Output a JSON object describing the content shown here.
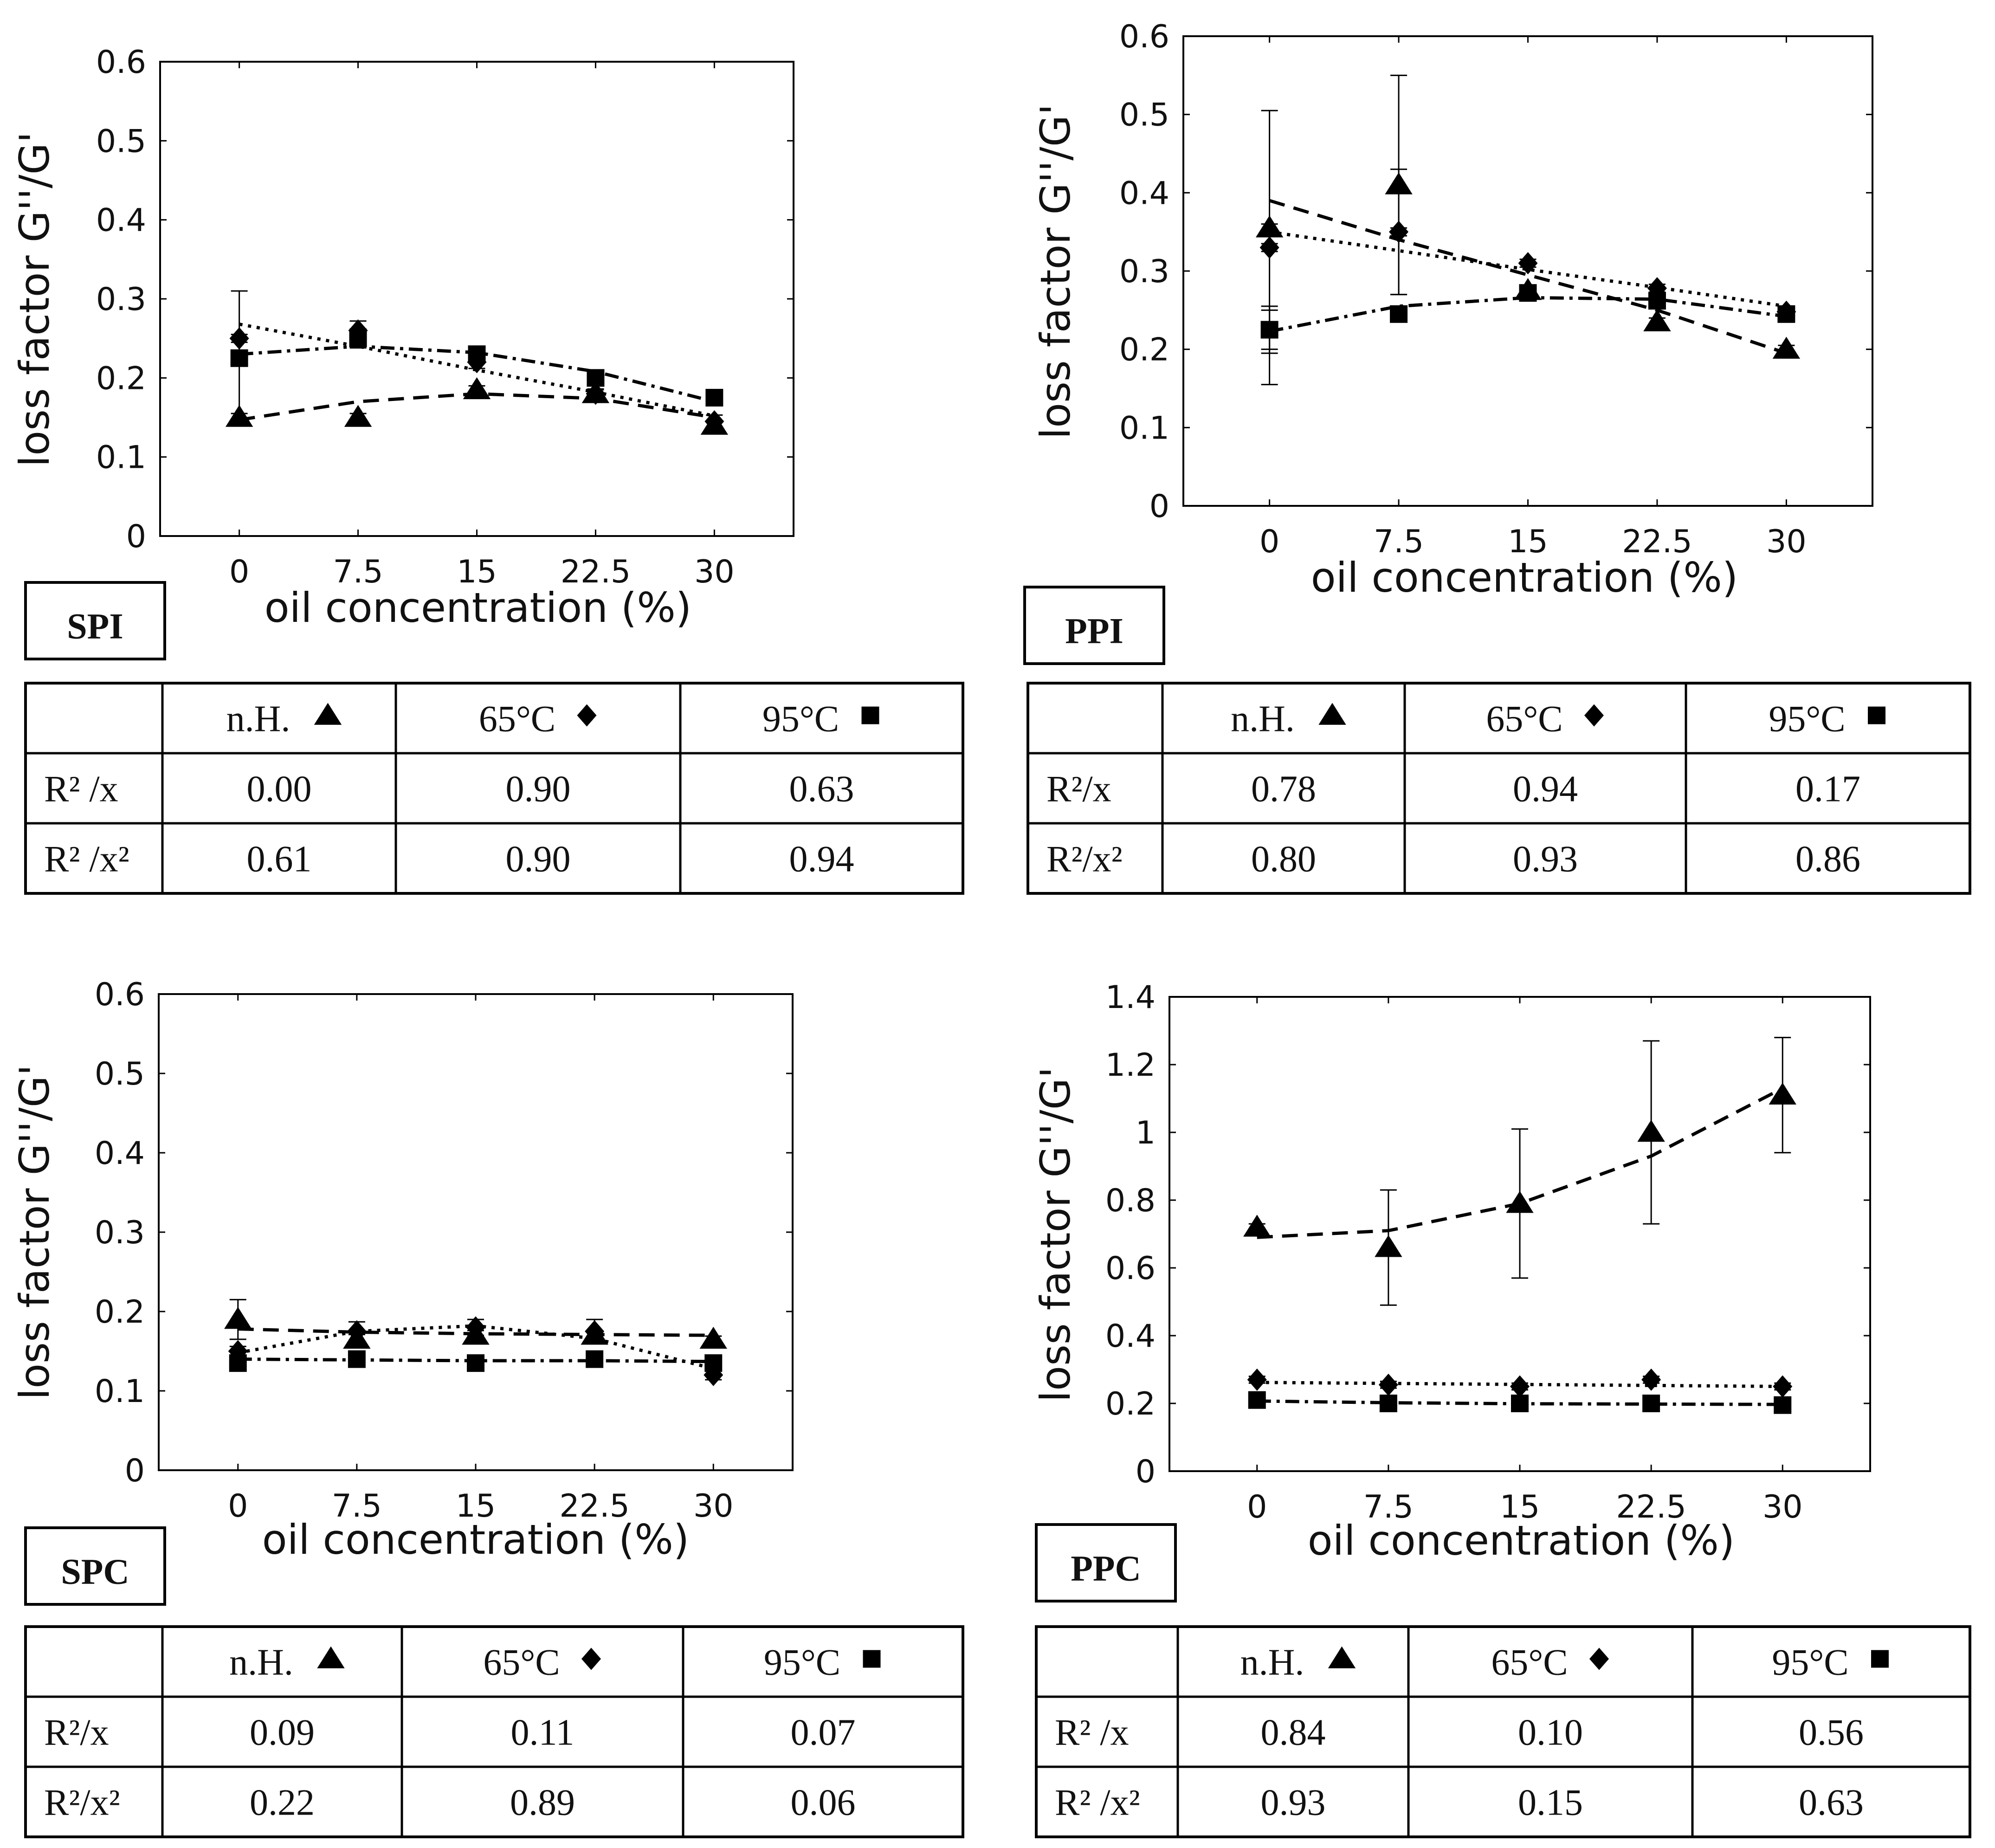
{
  "colors": {
    "ink": "#000000",
    "background": "#ffffff"
  },
  "legend_symbols": {
    "n.H.": "triangle",
    "65°C": "circle",
    "95°C": "square"
  },
  "chart_data": [
    {
      "id": "SPI",
      "panel_label": "SPI",
      "type": "scatter",
      "xlabel": "oil concentration (%)",
      "ylabel": "loss factor G''/G'",
      "x": [
        0,
        7.5,
        15,
        22.5,
        30
      ],
      "xticks": [
        "0",
        "7.5",
        "15",
        "22.5",
        "30"
      ],
      "ylim": [
        0,
        0.6
      ],
      "yticks": [
        "0",
        "0.1",
        "0.2",
        "0.3",
        "0.4",
        "0.5",
        "0.6"
      ],
      "series": [
        {
          "name": "n.H.",
          "marker": "triangle",
          "values": [
            0.15,
            0.15,
            0.185,
            0.18,
            0.14
          ],
          "errors": [
            0.005,
            0.005,
            0.005,
            0.005,
            0.005
          ],
          "fit": {
            "line": "dashed",
            "points": [
              0.147,
              0.17,
              0.18,
              0.174,
              0.15
            ]
          }
        },
        {
          "name": "65°C",
          "marker": "circle",
          "values": [
            0.25,
            0.26,
            0.22,
            0.18,
            0.145
          ],
          "errors": [
            0.005,
            0.012,
            0.008,
            0.006,
            0.008
          ],
          "fit": {
            "line": "dotted",
            "points": [
              0.268,
              0.24,
              0.21,
              0.182,
              0.152
            ]
          }
        },
        {
          "name": "95°C",
          "marker": "square",
          "values": [
            0.225,
            0.25,
            0.23,
            0.2,
            0.175
          ],
          "errors": [
            0.085,
            0.012,
            0.008,
            0.006,
            0.006
          ],
          "fit": {
            "line": "dashdot",
            "points": [
              0.23,
              0.24,
              0.232,
              0.208,
              0.17
            ]
          }
        }
      ],
      "table": {
        "headers": [
          "",
          "n.H.",
          "65°C",
          "95°C"
        ],
        "rows": [
          {
            "label": "R² /x",
            "values": [
              "0.00",
              "0.90",
              "0.63"
            ]
          },
          {
            "label": "R² /x²",
            "values": [
              "0.61",
              "0.90",
              "0.94"
            ]
          }
        ]
      }
    },
    {
      "id": "PPI",
      "panel_label": "PPI",
      "type": "scatter",
      "xlabel": "oil concentration (%)",
      "ylabel": "loss factor G''/G'",
      "x": [
        0,
        7.5,
        15,
        22.5,
        30
      ],
      "xticks": [
        "0",
        "7.5",
        "15",
        "22.5",
        "30"
      ],
      "ylim": [
        0,
        0.6
      ],
      "yticks": [
        "0",
        "0.1",
        "0.2",
        "0.3",
        "0.4",
        "0.5",
        "0.6"
      ],
      "series": [
        {
          "name": "n.H.",
          "marker": "triangle",
          "values": [
            0.355,
            0.41,
            0.275,
            0.235,
            0.2
          ],
          "errors": [
            0.005,
            0.14,
            0.005,
            0.005,
            0.005
          ],
          "fit": {
            "line": "dashed",
            "points": [
              0.39,
              0.34,
              0.295,
              0.25,
              0.195
            ]
          }
        },
        {
          "name": "65°C",
          "marker": "circle",
          "values": [
            0.33,
            0.35,
            0.31,
            0.278,
            0.248
          ],
          "errors": [
            0.005,
            0.005,
            0.005,
            0.005,
            0.005
          ],
          "fit": {
            "line": "dotted",
            "points": [
              0.35,
              0.326,
              0.302,
              0.279,
              0.255
            ]
          }
        },
        {
          "name": "95°C",
          "marker": "square",
          "values": [
            0.225,
            0.245,
            0.272,
            0.262,
            0.245
          ],
          "errors": [
            0.025,
            0.005,
            0.005,
            0.005,
            0.005
          ],
          "fit": {
            "line": "dashdot",
            "points": [
              0.223,
              0.255,
              0.266,
              0.264,
              0.242
            ]
          }
        }
      ],
      "extra_errorbars": [
        {
          "x": 0,
          "center": 0.33,
          "error": 0.175
        },
        {
          "x": 7.5,
          "center": 0.35,
          "error": 0.08
        },
        {
          "x": 0,
          "center": 0.225,
          "error": 0.03
        }
      ],
      "table": {
        "headers": [
          "",
          "n.H.",
          "65°C",
          "95°C"
        ],
        "rows": [
          {
            "label": "R²/x",
            "values": [
              "0.78",
              "0.94",
              "0.17"
            ]
          },
          {
            "label": "R²/x²",
            "values": [
              "0.80",
              "0.93",
              "0.86"
            ]
          }
        ]
      }
    },
    {
      "id": "SPC",
      "panel_label": "SPC",
      "type": "scatter",
      "xlabel": "oil concentration (%)",
      "ylabel": "loss factor G''/G'",
      "x": [
        0,
        7.5,
        15,
        22.5,
        30
      ],
      "xticks": [
        "0",
        "7.5",
        "15",
        "22.5",
        "30"
      ],
      "ylim": [
        0,
        0.6
      ],
      "yticks": [
        "0",
        "0.1",
        "0.2",
        "0.3",
        "0.4",
        "0.5",
        "0.6"
      ],
      "series": [
        {
          "name": "n.H.",
          "marker": "triangle",
          "values": [
            0.19,
            0.165,
            0.17,
            0.17,
            0.165
          ],
          "errors": [
            0.025,
            0.006,
            0.006,
            0.006,
            0.004
          ],
          "fit": {
            "line": "dashed",
            "points": [
              0.178,
              0.174,
              0.172,
              0.171,
              0.17
            ]
          }
        },
        {
          "name": "65°C",
          "marker": "circle",
          "values": [
            0.15,
            0.175,
            0.18,
            0.175,
            0.12
          ],
          "errors": [
            0.006,
            0.012,
            0.01,
            0.015,
            0.006
          ],
          "fit": {
            "line": "dotted",
            "points": [
              0.148,
              0.175,
              0.182,
              0.166,
              0.128
            ]
          }
        },
        {
          "name": "95°C",
          "marker": "square",
          "values": [
            0.135,
            0.14,
            0.135,
            0.14,
            0.135
          ],
          "errors": [
            0.006,
            0.006,
            0.006,
            0.006,
            0.006
          ],
          "fit": {
            "line": "dashdot",
            "points": [
              0.14,
              0.139,
              0.138,
              0.138,
              0.137
            ]
          }
        }
      ],
      "table": {
        "headers": [
          "",
          "n.H.",
          "65°C",
          "95°C"
        ],
        "rows": [
          {
            "label": "R²/x",
            "values": [
              "0.09",
              "0.11",
              "0.07"
            ]
          },
          {
            "label": "R²/x²",
            "values": [
              "0.22",
              "0.89",
              "0.06"
            ]
          }
        ]
      }
    },
    {
      "id": "PPC",
      "panel_label": "PPC",
      "type": "scatter",
      "xlabel": "oil concentration (%)",
      "ylabel": "loss factor G''/G'",
      "x": [
        0,
        7.5,
        15,
        22.5,
        30
      ],
      "xticks": [
        "0",
        "7.5",
        "15",
        "22.5",
        "30"
      ],
      "ylim": [
        0,
        1.4
      ],
      "yticks": [
        "0",
        "0.2",
        "0.4",
        "0.6",
        "0.8",
        "1",
        "1.2",
        "1.4"
      ],
      "series": [
        {
          "name": "n.H.",
          "marker": "triangle",
          "values": [
            0.72,
            0.66,
            0.79,
            1.0,
            1.11
          ],
          "errors": [
            0.01,
            0.17,
            0.22,
            0.27,
            0.17
          ],
          "fit": {
            "line": "dashed",
            "points": [
              0.69,
              0.71,
              0.79,
              0.93,
              1.13
            ]
          }
        },
        {
          "name": "65°C",
          "marker": "circle",
          "values": [
            0.27,
            0.255,
            0.25,
            0.27,
            0.25
          ],
          "errors": [
            0.01,
            0.01,
            0.01,
            0.01,
            0.01
          ],
          "fit": {
            "line": "dotted",
            "points": [
              0.262,
              0.259,
              0.256,
              0.253,
              0.25
            ]
          }
        },
        {
          "name": "95°C",
          "marker": "square",
          "values": [
            0.21,
            0.2,
            0.2,
            0.2,
            0.195
          ],
          "errors": [
            0.01,
            0.01,
            0.01,
            0.01,
            0.01
          ],
          "fit": {
            "line": "dashdot",
            "points": [
              0.207,
              0.202,
              0.199,
              0.198,
              0.197
            ]
          }
        }
      ],
      "table": {
        "headers": [
          "",
          "n.H.",
          "65°C",
          "95°C"
        ],
        "rows": [
          {
            "label": "R² /x",
            "values": [
              "0.84",
              "0.10",
              "0.56"
            ]
          },
          {
            "label": "R² /x²",
            "values": [
              "0.93",
              "0.15",
              "0.63"
            ]
          }
        ]
      }
    }
  ]
}
